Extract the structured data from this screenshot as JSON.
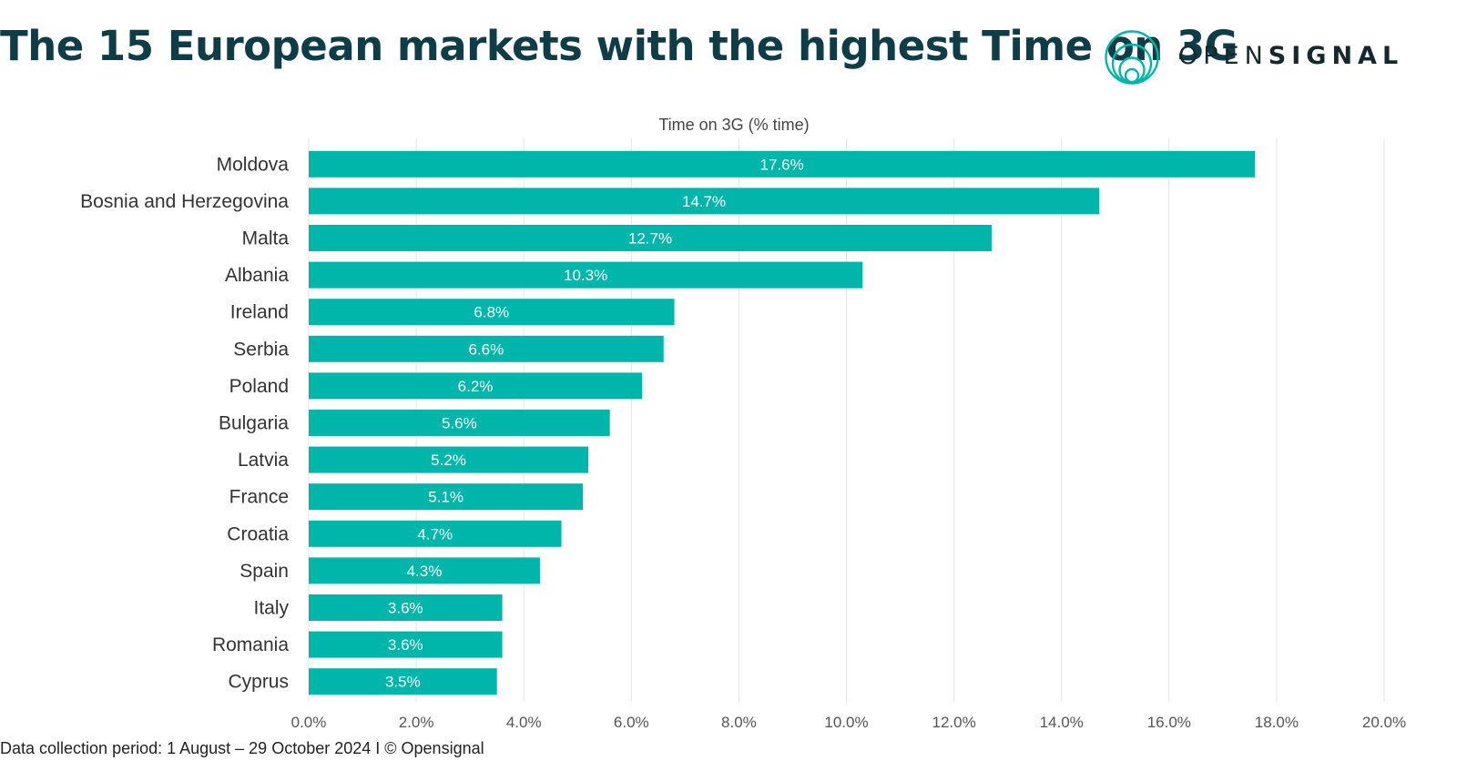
{
  "header": {
    "title": "The 15 European markets with the highest Time on 3G",
    "logo_text_light": "OPEN",
    "logo_text_bold": "SIGNAL",
    "logo_icon": "concentric-circles-icon"
  },
  "colors": {
    "bar": "#00b5a9",
    "title": "#0f3d47",
    "grid": "#e4e4e4",
    "label_text": "#333333",
    "tick_text": "#555555",
    "bar_label": "#ffffff"
  },
  "chart_data": {
    "type": "bar",
    "orientation": "horizontal",
    "title": "Time on 3G (% time)",
    "categories": [
      "Moldova",
      "Bosnia and Herzegovina",
      "Malta",
      "Albania",
      "Ireland",
      "Serbia",
      "Poland",
      "Bulgaria",
      "Latvia",
      "France",
      "Croatia",
      "Spain",
      "Italy",
      "Romania",
      "Cyprus"
    ],
    "values": [
      17.6,
      14.7,
      12.7,
      10.3,
      6.8,
      6.6,
      6.2,
      5.6,
      5.2,
      5.1,
      4.7,
      4.3,
      3.6,
      3.6,
      3.5
    ],
    "value_labels": [
      "17.6%",
      "14.7%",
      "12.7%",
      "10.3%",
      "6.8%",
      "6.6%",
      "6.2%",
      "5.6%",
      "5.2%",
      "5.1%",
      "4.7%",
      "4.3%",
      "3.6%",
      "3.6%",
      "3.5%"
    ],
    "xlim": [
      0,
      20
    ],
    "x_ticks": [
      0,
      2,
      4,
      6,
      8,
      10,
      12,
      14,
      16,
      18,
      20
    ],
    "x_tick_labels": [
      "0.0%",
      "2.0%",
      "4.0%",
      "6.0%",
      "8.0%",
      "10.0%",
      "12.0%",
      "14.0%",
      "16.0%",
      "18.0%",
      "20.0%"
    ],
    "grid": true
  },
  "footer": {
    "text": "Data collection period: 1 August – 29 October 2024 I © Opensignal"
  }
}
